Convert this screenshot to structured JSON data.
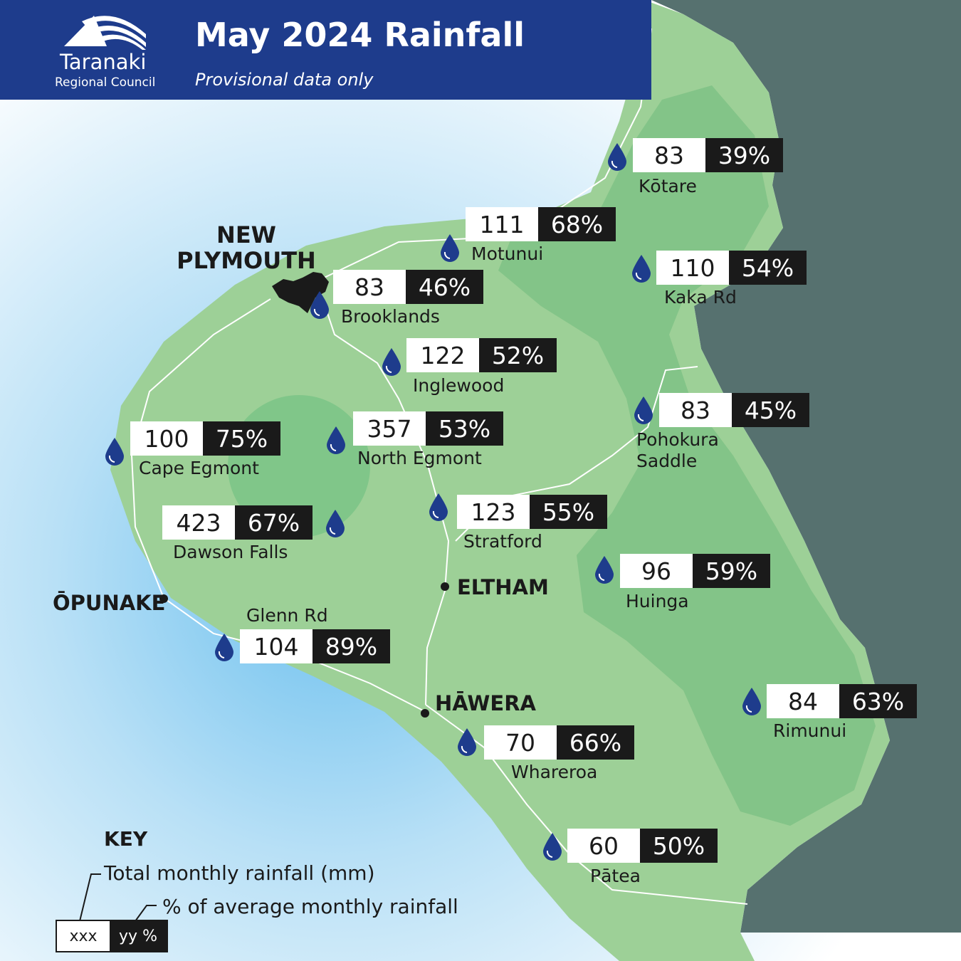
{
  "header": {
    "title": "May 2024 Rainfall",
    "subtitle": "Provisional data only",
    "org_name": "Taranaki",
    "org_sub": "Regional Council"
  },
  "colors": {
    "header_bg": "#1e3c8c",
    "land": "#9dd097",
    "land_dark": "#7fc285",
    "sea": "#56716f",
    "coast_water": "#a9d7f2",
    "drop": "#1e3c8c",
    "value_box": "#ffffff",
    "percent_box": "#1a1a1a"
  },
  "city": {
    "name": "NEW PLYMOUTH"
  },
  "towns": [
    {
      "name": "ŌPUNAKE"
    },
    {
      "name": "ELTHAM"
    },
    {
      "name": "HĀWERA"
    }
  ],
  "stations": [
    {
      "name": "Kōtare",
      "rainfall_mm": "83",
      "percent": "39%"
    },
    {
      "name": "Motunui",
      "rainfall_mm": "111",
      "percent": "68%"
    },
    {
      "name": "Kaka Rd",
      "rainfall_mm": "110",
      "percent": "54%"
    },
    {
      "name": "Brooklands",
      "rainfall_mm": "83",
      "percent": "46%"
    },
    {
      "name": "Inglewood",
      "rainfall_mm": "122",
      "percent": "52%"
    },
    {
      "name": "Pohokura Saddle",
      "rainfall_mm": "83",
      "percent": "45%"
    },
    {
      "name": "Cape Egmont",
      "rainfall_mm": "100",
      "percent": "75%"
    },
    {
      "name": "North Egmont",
      "rainfall_mm": "357",
      "percent": "53%"
    },
    {
      "name": "Stratford",
      "rainfall_mm": "123",
      "percent": "55%"
    },
    {
      "name": "Dawson Falls",
      "rainfall_mm": "423",
      "percent": "67%"
    },
    {
      "name": "Huinga",
      "rainfall_mm": "96",
      "percent": "59%"
    },
    {
      "name": "Glenn Rd",
      "rainfall_mm": "104",
      "percent": "89%"
    },
    {
      "name": "Rimunui",
      "rainfall_mm": "84",
      "percent": "63%"
    },
    {
      "name": "Whareroa",
      "rainfall_mm": "70",
      "percent": "66%"
    },
    {
      "name": "Pātea",
      "rainfall_mm": "60",
      "percent": "50%"
    }
  ],
  "key": {
    "title": "KEY",
    "rainfall_label": "Total monthly rainfall (mm)",
    "percent_label": "% of average monthly rainfall",
    "value_placeholder": "xxx",
    "percent_placeholder": "yy %"
  }
}
